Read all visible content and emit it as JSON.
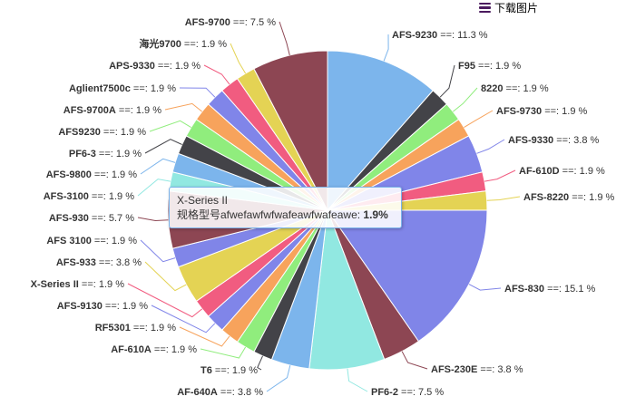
{
  "toolbar": {
    "download_label": "下载图片",
    "menu_icon": "hamburger-menu-icon"
  },
  "tooltip": {
    "series_name": "X-Series II",
    "metric_label": "规格型号afwefawfwfwafeawfwafeawe",
    "value_text": "1.9%"
  },
  "chart_data": {
    "type": "pie",
    "title": "",
    "label_suffix": " ==: ",
    "unit": "%",
    "start": "12 o'clock",
    "direction": "clockwise",
    "slices": [
      {
        "name": "AFS-9230",
        "value": 11.3,
        "color": "#7cb5ec"
      },
      {
        "name": "F95",
        "value": 1.9,
        "color": "#434348"
      },
      {
        "name": "8220",
        "value": 1.9,
        "color": "#90ed7d"
      },
      {
        "name": "AFS-9730",
        "value": 1.9,
        "color": "#f7a35c"
      },
      {
        "name": "AFS-9330",
        "value": 3.8,
        "color": "#8085e9"
      },
      {
        "name": "AF-610D",
        "value": 1.9,
        "color": "#f15c80"
      },
      {
        "name": "AFS-8220",
        "value": 1.9,
        "color": "#e4d354"
      },
      {
        "name": "AFS-830",
        "value": 15.1,
        "color": "#8085e8"
      },
      {
        "name": "AFS-230E",
        "value": 3.8,
        "color": "#8d4653"
      },
      {
        "name": "PF6-2",
        "value": 7.5,
        "color": "#91e8e1"
      },
      {
        "name": "AF-640A",
        "value": 3.8,
        "color": "#7cb5ec"
      },
      {
        "name": "T6",
        "value": 1.9,
        "color": "#434348"
      },
      {
        "name": "AF-610A",
        "value": 1.9,
        "color": "#90ed7d"
      },
      {
        "name": "RF5301",
        "value": 1.9,
        "color": "#f7a35c"
      },
      {
        "name": "AFS-9130",
        "value": 1.9,
        "color": "#8085e9"
      },
      {
        "name": "X-Series II",
        "value": 1.9,
        "color": "#f15c80"
      },
      {
        "name": "AFS-933",
        "value": 3.8,
        "color": "#e4d354"
      },
      {
        "name": "AFS 3100",
        "value": 1.9,
        "color": "#8085e8"
      },
      {
        "name": "AFS-930",
        "value": 5.7,
        "color": "#8d4653"
      },
      {
        "name": "AFS-3100",
        "value": 1.9,
        "color": "#91e8e1"
      },
      {
        "name": "AFS-9800",
        "value": 1.9,
        "color": "#7cb5ec"
      },
      {
        "name": "PF6-3",
        "value": 1.9,
        "color": "#434348"
      },
      {
        "name": "AFS9230",
        "value": 1.9,
        "color": "#90ed7d"
      },
      {
        "name": "AFS-9700A",
        "value": 1.9,
        "color": "#f7a35c"
      },
      {
        "name": "Aglient7500c",
        "value": 1.9,
        "color": "#8085e9"
      },
      {
        "name": "APS-9330",
        "value": 1.9,
        "color": "#f15c80"
      },
      {
        "name": "海光9700",
        "value": 1.9,
        "color": "#e4d354"
      },
      {
        "name": "AFS-9700",
        "value": 7.5,
        "color": "#8d4653"
      }
    ]
  }
}
